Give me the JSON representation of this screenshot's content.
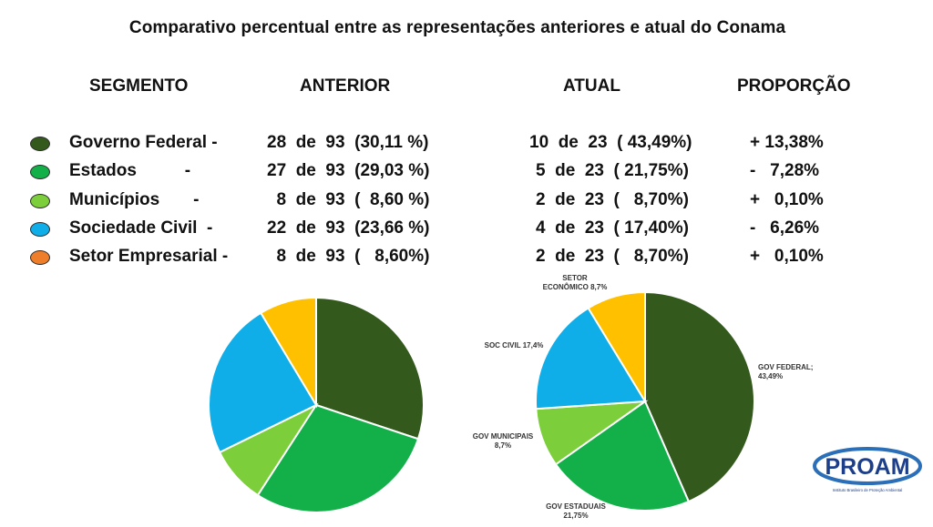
{
  "title": "Comparativo percentual entre as representações anteriores e atual do Conama",
  "headers": {
    "segmento": "SEGMENTO",
    "anterior": "ANTERIOR",
    "atual": "ATUAL",
    "proporcao": "PROPORÇÃO"
  },
  "rows": [
    {
      "segment": "Governo Federal -",
      "anterior": "28  de  93  (30,11 %)",
      "atual": "10  de  23  ( 43,49%)",
      "proporcao": "+ 13,38%",
      "color": "#335a1c"
    },
    {
      "segment": "Estados          -",
      "anterior": "27  de  93  (29,03 %)",
      "atual": "5  de  23  ( 21,75%)",
      "proporcao": "-   7,28%",
      "color": "#13b04a"
    },
    {
      "segment": "Municípios       -",
      "anterior": "  8  de  93  (  8,60 %)",
      "atual": "2  de  23  (   8,70%)",
      "proporcao": "+   0,10%",
      "color": "#7ccf3a"
    },
    {
      "segment": "Sociedade Civil  -",
      "anterior": "22  de  93  (23,66 %)",
      "atual": "4  de  23  ( 17,40%)",
      "proporcao": "-   6,26%",
      "color": "#10aee8"
    },
    {
      "segment": "Setor Empresarial -",
      "anterior": "  8  de  93  (   8,60%)",
      "atual": "2  de  23  (   8,70%)",
      "proporcao": "+   0,10%",
      "color": "#ef7e2b"
    }
  ],
  "chart_data": [
    {
      "type": "pie",
      "title": "",
      "slices": [
        {
          "label": "",
          "value": 30.11,
          "color": "#335a1c"
        },
        {
          "label": "",
          "value": 29.03,
          "color": "#13b04a"
        },
        {
          "label": "",
          "value": 8.6,
          "color": "#7ccf3a"
        },
        {
          "label": "",
          "value": 23.66,
          "color": "#10aee8"
        },
        {
          "label": "",
          "value": 8.6,
          "color": "#ffc000"
        }
      ]
    },
    {
      "type": "pie",
      "title": "",
      "slices": [
        {
          "label": "GOV FEDERAL; 43,49%",
          "value": 43.49,
          "color": "#335a1c"
        },
        {
          "label": "GOV ESTADUAIS 21,75%",
          "value": 21.75,
          "color": "#13b04a"
        },
        {
          "label": "GOV MUNICIPAIS 8,7%",
          "value": 8.7,
          "color": "#7ccf3a"
        },
        {
          "label": "SOC CIVIL 17,4%",
          "value": 17.4,
          "color": "#10aee8"
        },
        {
          "label": "SETOR ECONÔMICO 8,7%",
          "value": 8.7,
          "color": "#ffc000"
        }
      ]
    }
  ],
  "logo": {
    "text": "PROAM",
    "subtitle": "Instituto Brasileiro de Proteção Ambiental"
  }
}
